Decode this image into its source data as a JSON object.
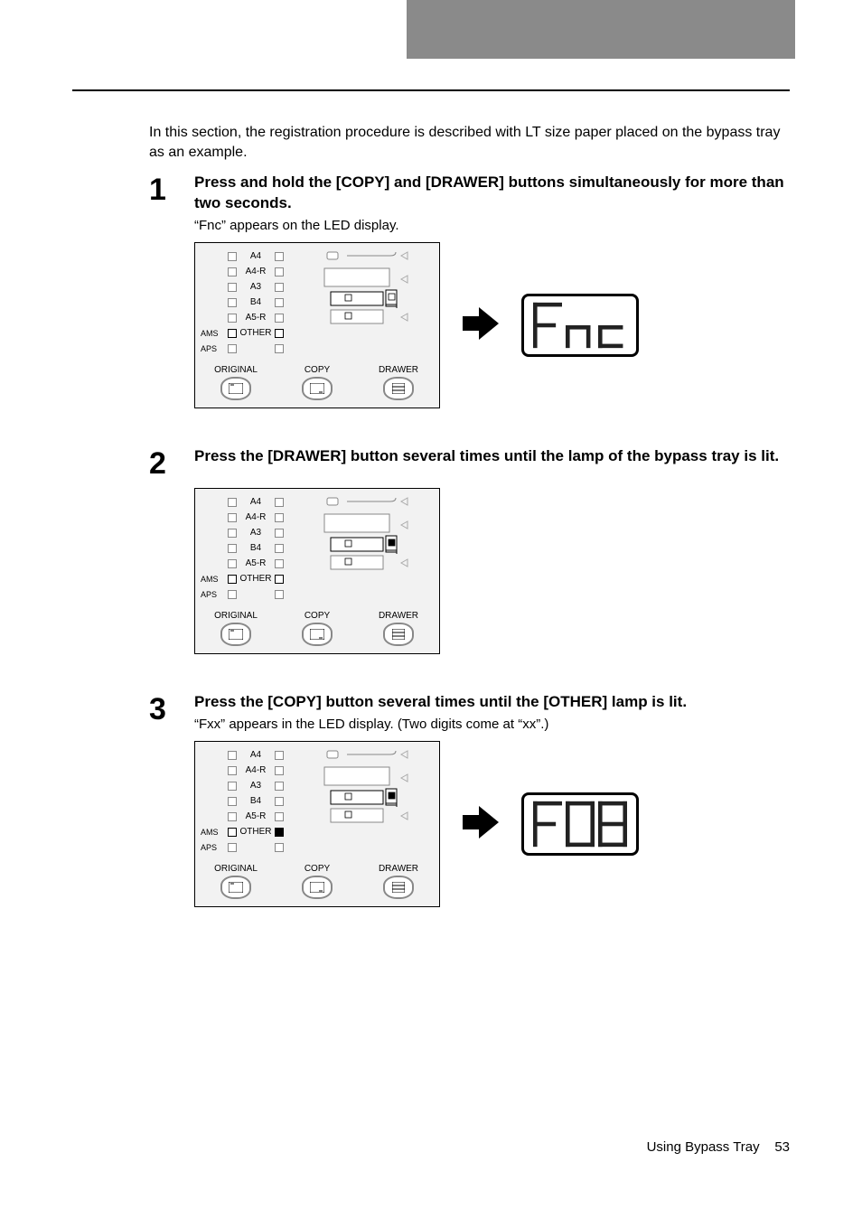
{
  "intro": "In this section, the registration procedure is described with LT size paper placed on the bypass tray as an example.",
  "steps": [
    {
      "num": "1",
      "title": "Press and hold the [COPY] and [DRAWER] buttons simultaneously for more than two seconds.",
      "sub": "“Fnc” appears on the LED display.",
      "has_arrow_display": true,
      "seg_svg": "Fnc",
      "lit_bypass": false,
      "lit_other": false
    },
    {
      "num": "2",
      "title": "Press the [DRAWER] button several times until the lamp of the bypass tray is lit.",
      "sub": "",
      "has_arrow_display": false,
      "lit_bypass": true,
      "lit_other": false
    },
    {
      "num": "3",
      "title": "Press the [COPY] button several times until the [OTHER] lamp is lit.",
      "sub": "“Fxx” appears in the LED display. (Two digits come at “xx”.)",
      "has_arrow_display": true,
      "seg_svg": "F08",
      "lit_bypass": true,
      "lit_other": true
    }
  ],
  "panel": {
    "sizes": [
      "A4",
      "A4-R",
      "A3",
      "B4",
      "A5-R",
      "OTHER"
    ],
    "left_labels_top": "AMS",
    "left_labels_bot": "APS",
    "col_labels": [
      "ORIGINAL",
      "COPY",
      "DRAWER"
    ]
  },
  "footer": {
    "text": "Using Bypass Tray",
    "page": "53"
  }
}
